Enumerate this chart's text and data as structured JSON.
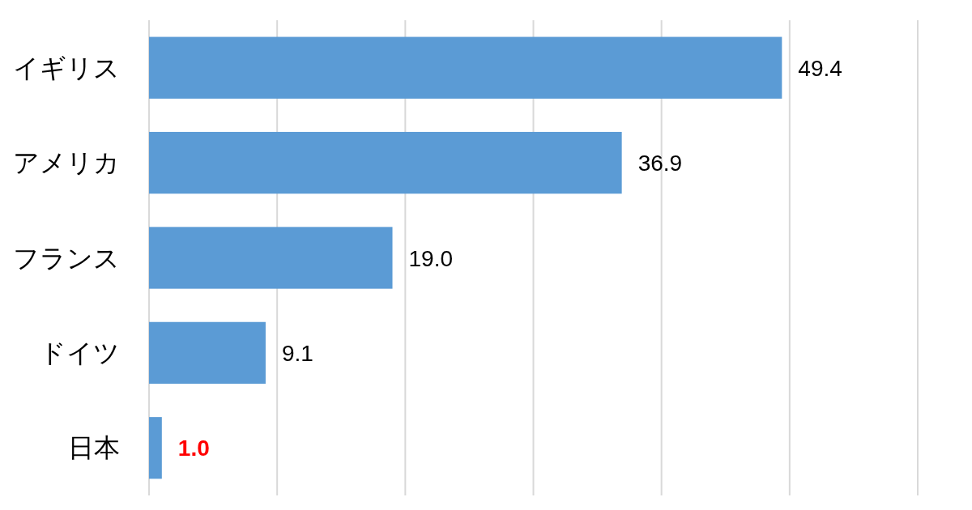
{
  "chart_data": {
    "type": "bar",
    "orientation": "horizontal",
    "categories": [
      "イギリス",
      "アメリカ",
      "フランス",
      "ドイツ",
      "日本"
    ],
    "values": [
      49.4,
      36.9,
      19.0,
      9.1,
      1.0
    ],
    "color": "#5b9bd5",
    "value_labels": [
      "49.4",
      "36.9",
      "19.0",
      "9.1",
      null
    ],
    "annotations": [
      {
        "text": "1.0",
        "x": 1.0,
        "y": "日本"
      }
    ],
    "xlim": [
      0,
      60
    ],
    "xticks": [
      {
        "value": 0,
        "label": null
      },
      {
        "value": 10,
        "label": null
      },
      {
        "value": 20,
        "label": null
      },
      {
        "value": 30,
        "label": null
      },
      {
        "value": 40,
        "label": null
      },
      {
        "value": 50,
        "label": null
      },
      {
        "value": 60,
        "label": null
      }
    ],
    "grid": "x"
  }
}
